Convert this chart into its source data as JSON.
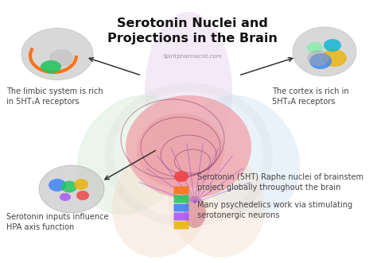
{
  "title_line1": "Serotonin Nuclei and",
  "title_line2": "Projections in the Brain",
  "subtitle": "Spiritpharmacist.com",
  "bg_color": "#ffffff",
  "title_color": "#111111",
  "title_fontsize": 11.5,
  "subtitle_fontsize": 5.0,
  "body_fontsize": 7.0,
  "label_top_left": "The limbic system is rich\nin 5HT₁A receptors",
  "label_top_right": "The cortex is rich in\n5HT₂A receptors",
  "label_bottom_left": "Serotonin inputs influence\nHPA axis function",
  "label_bottom_right_1": "Serotonin (5HT) Raphe nuclei of brainstem\nproject globally throughout the brain",
  "label_bottom_right_2": "Many psychedelics work via stimulating\nserotonergic neurons",
  "arrow_color": "#333333",
  "petal_top_color": "#e8daf0",
  "petal_left_color": "#d4ebd4",
  "petal_right_color": "#cce4f0",
  "petal_bl_color": "#f5e0d0",
  "petal_br_color": "#f5e0d0",
  "brain_main_color": "#f0a8b0",
  "brain_inner_color": "#e89098",
  "brain_side_color": "#cccccc",
  "brain_accent_orange": "#f97316",
  "brain_accent_green": "#22c55e",
  "brain_accent_yellow": "#eab308",
  "brain_accent_blue": "#3b82f6",
  "brain_accent_cyan": "#06b6d4",
  "brain_accent_lightgreen": "#86efac",
  "brain_accent_purple": "#a855f7",
  "brain_accent_red": "#ef4444"
}
